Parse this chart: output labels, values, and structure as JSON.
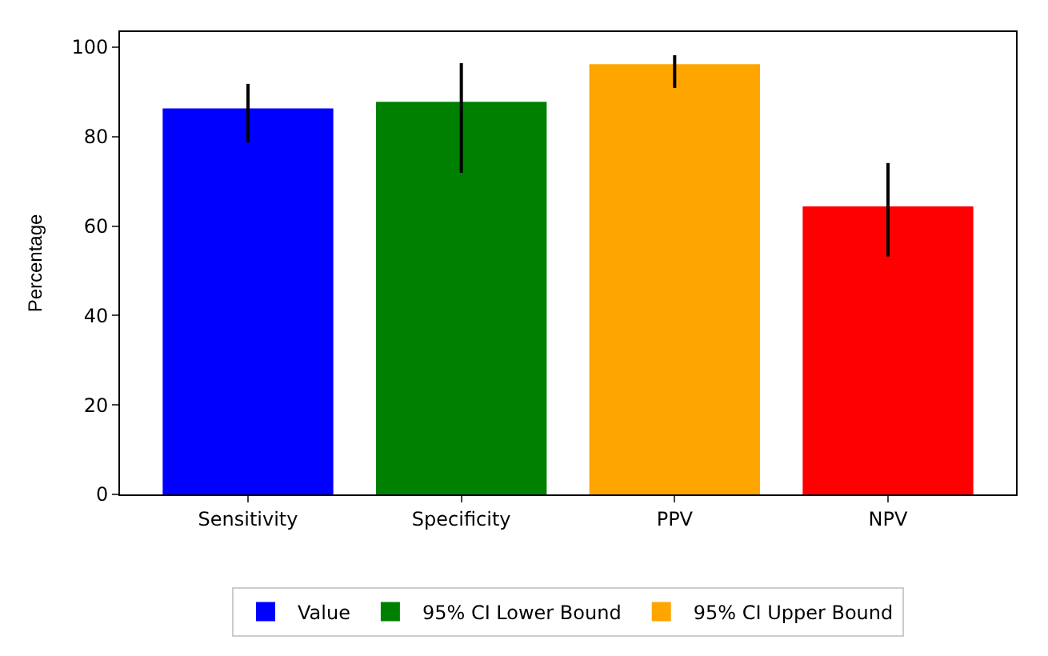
{
  "chart_data": {
    "type": "bar",
    "ylabel": "Percentage",
    "categories": [
      "Sensitivity",
      "Specificity",
      "PPV",
      "NPV"
    ],
    "series": [
      {
        "name": "Value",
        "color": "#0000ff",
        "values": [
          86.3,
          null,
          null,
          null
        ],
        "errors": [
          [
            78.7,
            91.8
          ],
          null,
          null,
          null
        ]
      },
      {
        "name": "95% CI Lower Bound",
        "color": "#008000",
        "values": [
          null,
          87.8,
          null,
          null
        ],
        "errors": [
          null,
          [
            71.9,
            96.4
          ],
          null,
          null
        ]
      },
      {
        "name": "95% CI Upper Bound",
        "color": "#ffa500",
        "values": [
          null,
          null,
          96.2,
          null
        ],
        "errors": [
          null,
          null,
          [
            90.9,
            98.2
          ],
          null
        ]
      },
      {
        "color": "#ff0000",
        "values": [
          null,
          null,
          null,
          64.4
        ],
        "errors": [
          null,
          null,
          null,
          [
            53.2,
            74.1
          ]
        ]
      }
    ],
    "ylim": [
      0,
      103.4
    ],
    "yticks": [
      0,
      20,
      40,
      60,
      80,
      100
    ],
    "legend": "bottom"
  }
}
